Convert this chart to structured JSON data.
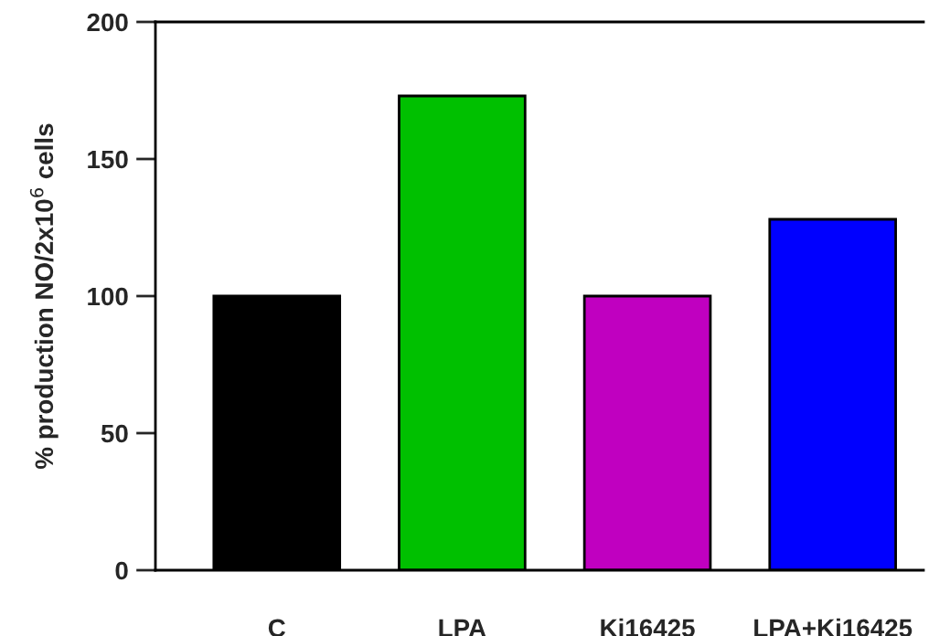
{
  "chart_data": {
    "type": "bar",
    "ylabel": "% production NO/2x10$^{6}$ cells",
    "categories": [
      "C",
      "LPA",
      "Ki16425",
      "LPA+Ki16425"
    ],
    "values": [
      100,
      173,
      100,
      128
    ],
    "colors": [
      "#000000",
      "#00c000",
      "#c000c0",
      "#0000ff"
    ],
    "ylim": [
      0,
      200
    ],
    "yticks": [
      0,
      50,
      100,
      150,
      200
    ],
    "grid": false,
    "legend": false
  }
}
